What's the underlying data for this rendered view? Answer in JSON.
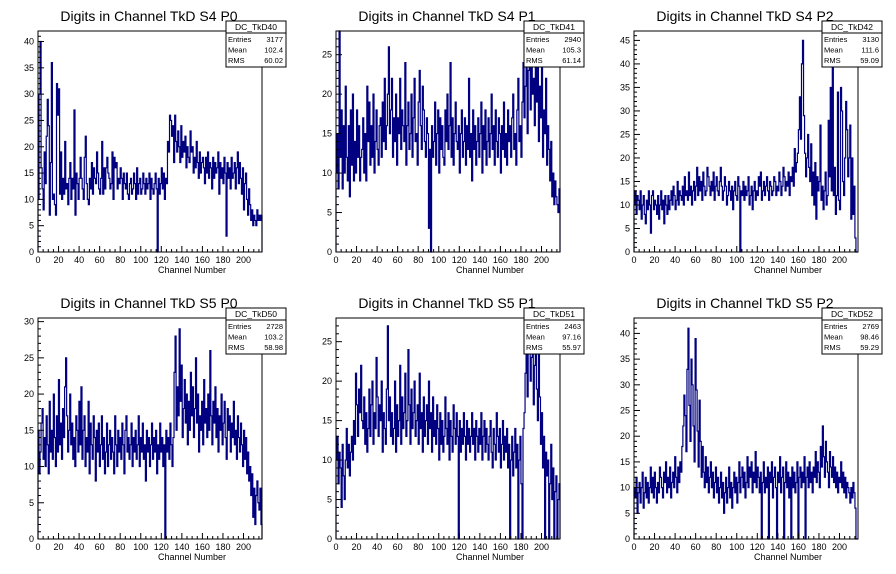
{
  "xlabel": "Channel Number",
  "chart_data": [
    {
      "type": "histogram",
      "title": "Digits in Channel TkD S4 P0",
      "xlabel": "Channel Number",
      "xlim": [
        0,
        218
      ],
      "ylim": [
        0,
        42
      ],
      "xticks": [
        0,
        20,
        40,
        60,
        80,
        100,
        120,
        140,
        160,
        180,
        200
      ],
      "yticks": [
        0,
        5,
        10,
        15,
        20,
        25,
        30,
        35,
        40
      ],
      "stats": {
        "name": "DC_TkD40",
        "entries": "3177",
        "mean": "102.4",
        "rms": "60.02"
      },
      "color": "#000080",
      "values": [
        10,
        30,
        40,
        16,
        12,
        8,
        19,
        13,
        22,
        29,
        24,
        7,
        17,
        36,
        10,
        11,
        9,
        7,
        32,
        26,
        31,
        11,
        19,
        10,
        14,
        11,
        21,
        12,
        13,
        9,
        14,
        17,
        10,
        14,
        12,
        27,
        7,
        15,
        13,
        10,
        14,
        18,
        14,
        12,
        10,
        18,
        22,
        13,
        10,
        9,
        14,
        12,
        17,
        11,
        16,
        14,
        13,
        19,
        15,
        12,
        11,
        14,
        21,
        11,
        16,
        12,
        16,
        18,
        15,
        14,
        12,
        13,
        19,
        10,
        18,
        16,
        17,
        12,
        14,
        13,
        16,
        14,
        10,
        15,
        13,
        12,
        15,
        11,
        10,
        13,
        14,
        11,
        12,
        15,
        13,
        10,
        16,
        11,
        13,
        14,
        11,
        12,
        15,
        13,
        11,
        14,
        12,
        13,
        15,
        10,
        14,
        12,
        11,
        13,
        15,
        12,
        0,
        14,
        11,
        13,
        16,
        12,
        15,
        10,
        14,
        13,
        21,
        19,
        26,
        25,
        22,
        24,
        17,
        26,
        21,
        19,
        23,
        20,
        17,
        24,
        18,
        21,
        19,
        22,
        16,
        20,
        18,
        17,
        23,
        19,
        20,
        15,
        18,
        16,
        21,
        17,
        14,
        19,
        15,
        17,
        18,
        16,
        13,
        18,
        15,
        19,
        14,
        17,
        16,
        12,
        18,
        14,
        17,
        15,
        16,
        19,
        11,
        17,
        14,
        16,
        13,
        18,
        15,
        3,
        17,
        14,
        16,
        12,
        18,
        14,
        15,
        17,
        12,
        16,
        19,
        13,
        17,
        14,
        11,
        16,
        8,
        13,
        15,
        10,
        7,
        12,
        9,
        6,
        8,
        5,
        7,
        6,
        5,
        8,
        6,
        7,
        6,
        7
      ]
    },
    {
      "type": "histogram",
      "title": "Digits in Channel TkD S4 P1",
      "xlabel": "Channel Number",
      "xlim": [
        0,
        218
      ],
      "ylim": [
        0,
        28
      ],
      "xticks": [
        0,
        20,
        40,
        60,
        80,
        100,
        120,
        140,
        160,
        180,
        200
      ],
      "yticks": [
        0,
        5,
        10,
        15,
        20,
        25
      ],
      "stats": {
        "name": "DC_TkD41",
        "entries": "2940",
        "mean": "105.3",
        "rms": "61.14"
      },
      "color": "#000080",
      "values": [
        10,
        15,
        8,
        28,
        12,
        18,
        8,
        16,
        10,
        21,
        12,
        9,
        16,
        7,
        18,
        11,
        20,
        9,
        14,
        10,
        18,
        12,
        16,
        9,
        12,
        13,
        17,
        10,
        15,
        9,
        21,
        14,
        19,
        11,
        16,
        12,
        20,
        10,
        14,
        18,
        13,
        11,
        16,
        17,
        12,
        19,
        14,
        22,
        13,
        16,
        20,
        26,
        15,
        18,
        22,
        12,
        17,
        14,
        20,
        11,
        17,
        15,
        22,
        13,
        18,
        16,
        14,
        24,
        11,
        16,
        19,
        13,
        15,
        20,
        12,
        17,
        22,
        14,
        15,
        11,
        19,
        23,
        16,
        13,
        21,
        18,
        14,
        12,
        17,
        15,
        3,
        13,
        0,
        16,
        12,
        14,
        19,
        11,
        15,
        18,
        10,
        17,
        13,
        16,
        12,
        11,
        18,
        14,
        20,
        13,
        16,
        24,
        12,
        17,
        11,
        15,
        19,
        14,
        13,
        16,
        10,
        15,
        18,
        12,
        14,
        17,
        11,
        16,
        13,
        22,
        12,
        15,
        9,
        18,
        13,
        16,
        11,
        14,
        17,
        12,
        15,
        19,
        10,
        16,
        13,
        18,
        11,
        14,
        17,
        12,
        15,
        20,
        13,
        16,
        11,
        18,
        14,
        12,
        17,
        15,
        10,
        16,
        13,
        19,
        12,
        15,
        11,
        18,
        14,
        16,
        12,
        17,
        20,
        13,
        15,
        11,
        18,
        22,
        14,
        16,
        12,
        19,
        24,
        17,
        21,
        26,
        15,
        23,
        28,
        18,
        25,
        20,
        22,
        16,
        27,
        19,
        24,
        14,
        21,
        17,
        25,
        12,
        18,
        15,
        22,
        11,
        16,
        13,
        9,
        14,
        7,
        10,
        6,
        9,
        7,
        6,
        5,
        8
      ]
    },
    {
      "type": "histogram",
      "title": "Digits in Channel TkD S4 P2",
      "xlabel": "Channel Number",
      "xlim": [
        0,
        218
      ],
      "ylim": [
        0,
        47
      ],
      "xticks": [
        0,
        20,
        40,
        60,
        80,
        100,
        120,
        140,
        160,
        180,
        200
      ],
      "yticks": [
        0,
        5,
        10,
        15,
        20,
        25,
        30,
        35,
        40,
        45
      ],
      "stats": {
        "name": "DC_TkD42",
        "entries": "3130",
        "mean": "111.6",
        "rms": "59.09"
      },
      "color": "#000080",
      "values": [
        10,
        13,
        8,
        12,
        11,
        9,
        13,
        7,
        10,
        12,
        8,
        6,
        11,
        9,
        13,
        10,
        4,
        12,
        13,
        9,
        11,
        10,
        8,
        12,
        7,
        10,
        13,
        9,
        11,
        6,
        12,
        10,
        8,
        12,
        9,
        11,
        13,
        10,
        14,
        12,
        9,
        11,
        15,
        10,
        13,
        12,
        11,
        14,
        10,
        16,
        12,
        13,
        11,
        17,
        12,
        14,
        10,
        13,
        15,
        11,
        14,
        18,
        12,
        16,
        13,
        15,
        11,
        17,
        14,
        12,
        13,
        18,
        16,
        14,
        12,
        15,
        13,
        17,
        11,
        14,
        16,
        13,
        12,
        15,
        18,
        14,
        11,
        13,
        16,
        14,
        10,
        12,
        15,
        13,
        11,
        14,
        9,
        13,
        15,
        12,
        11,
        16,
        14,
        0,
        13,
        12,
        15,
        11,
        14,
        12,
        13,
        16,
        10,
        12,
        14,
        9,
        13,
        15,
        11,
        13,
        12,
        16,
        14,
        17,
        11,
        13,
        15,
        12,
        14,
        16,
        13,
        11,
        15,
        14,
        12,
        13,
        16,
        15,
        12,
        14,
        13,
        17,
        15,
        12,
        14,
        18,
        16,
        13,
        15,
        14,
        17,
        12,
        16,
        15,
        18,
        14,
        22,
        17,
        19,
        21,
        26,
        33,
        24,
        40,
        45,
        29,
        21,
        16,
        20,
        25,
        18,
        15,
        23,
        12,
        17,
        10,
        19,
        7,
        16,
        13,
        15,
        27,
        11,
        14,
        9,
        13,
        17,
        10,
        12,
        28,
        16,
        35,
        13,
        40,
        12,
        18,
        8,
        12,
        34,
        11,
        9,
        35,
        30,
        15,
        12,
        20,
        32,
        26,
        16,
        20,
        27,
        7,
        20,
        8,
        14,
        3,
        0,
        0
      ]
    },
    {
      "type": "histogram",
      "title": "Digits in Channel TkD S5 P0",
      "xlabel": "Channel Number",
      "xlim": [
        0,
        218
      ],
      "ylim": [
        0,
        30.5
      ],
      "xticks": [
        0,
        20,
        40,
        60,
        80,
        100,
        120,
        140,
        160,
        180,
        200
      ],
      "yticks": [
        0,
        5,
        10,
        15,
        20,
        25,
        30
      ],
      "stats": {
        "name": "DC_TkD50",
        "entries": "2728",
        "mean": "103.2",
        "rms": "58.98"
      },
      "color": "#000080",
      "values": [
        15,
        9,
        12,
        16,
        18,
        11,
        14,
        10,
        17,
        13,
        9,
        19,
        12,
        15,
        11,
        20,
        14,
        10,
        17,
        12,
        22,
        13,
        16,
        11,
        18,
        14,
        21,
        25,
        17,
        12,
        15,
        20,
        13,
        16,
        11,
        14,
        10,
        17,
        15,
        12,
        19,
        13,
        21,
        11,
        15,
        17,
        10,
        14,
        12,
        19,
        9,
        16,
        13,
        11,
        17,
        14,
        8,
        15,
        12,
        16,
        10,
        13,
        17,
        11,
        14,
        9,
        12,
        16,
        10,
        13,
        15,
        11,
        14,
        12,
        9,
        17,
        13,
        10,
        15,
        12,
        14,
        11,
        16,
        13,
        9,
        15,
        17,
        12,
        14,
        11,
        13,
        16,
        10,
        14,
        12,
        15,
        11,
        13,
        17,
        10,
        14,
        12,
        16,
        11,
        13,
        8,
        15,
        12,
        14,
        10,
        13,
        16,
        11,
        14,
        12,
        15,
        9,
        13,
        11,
        16,
        12,
        14,
        10,
        13,
        0,
        15,
        12,
        14,
        11,
        16,
        13,
        10,
        14,
        23,
        28,
        15,
        21,
        17,
        29,
        19,
        24,
        14,
        18,
        22,
        16,
        20,
        13,
        19,
        15,
        23,
        17,
        21,
        14,
        18,
        25,
        16,
        20,
        12,
        17,
        15,
        19,
        13,
        22,
        16,
        18,
        14,
        20,
        15,
        26,
        17,
        13,
        19,
        16,
        21,
        14,
        18,
        12,
        17,
        15,
        20,
        13,
        16,
        19,
        14,
        11,
        18,
        15,
        17,
        12,
        16,
        14,
        19,
        13,
        15,
        11,
        17,
        14,
        12,
        16,
        13,
        10,
        15,
        11,
        14,
        9,
        12,
        8,
        10,
        6,
        9,
        3,
        7,
        2,
        6,
        8,
        5,
        4,
        7,
        2
      ]
    },
    {
      "type": "histogram",
      "title": "Digits in Channel TkD S5 P1",
      "xlabel": "Channel Number",
      "xlim": [
        0,
        218
      ],
      "ylim": [
        0,
        28
      ],
      "xticks": [
        0,
        20,
        40,
        60,
        80,
        100,
        120,
        140,
        160,
        180,
        200
      ],
      "yticks": [
        0,
        5,
        10,
        15,
        20,
        25
      ],
      "stats": {
        "name": "DC_TkD51",
        "entries": "2463",
        "mean": "97.16",
        "rms": "55.97"
      },
      "color": "#000080",
      "values": [
        10,
        13,
        7,
        11,
        9,
        4,
        12,
        8,
        5,
        10,
        14,
        9,
        12,
        8,
        11,
        13,
        10,
        15,
        12,
        21,
        17,
        13,
        19,
        16,
        22,
        15,
        14,
        18,
        12,
        16,
        11,
        14,
        19,
        13,
        17,
        20,
        12,
        16,
        14,
        23,
        18,
        13,
        17,
        15,
        20,
        11,
        16,
        14,
        12,
        19,
        27,
        15,
        18,
        13,
        16,
        12,
        14,
        20,
        11,
        17,
        13,
        15,
        22,
        12,
        18,
        14,
        16,
        21,
        13,
        15,
        24,
        17,
        12,
        19,
        14,
        16,
        20,
        13,
        15,
        17,
        12,
        21,
        14,
        16,
        11,
        18,
        13,
        15,
        17,
        12,
        20,
        14,
        16,
        11,
        18,
        13,
        15,
        12,
        17,
        14,
        10,
        16,
        12,
        15,
        11,
        13,
        18,
        14,
        12,
        16,
        10,
        15,
        13,
        11,
        17,
        14,
        12,
        16,
        13,
        0,
        15,
        11,
        14,
        12,
        16,
        13,
        10,
        15,
        12,
        14,
        11,
        13,
        16,
        12,
        14,
        10,
        15,
        13,
        11,
        14,
        12,
        16,
        10,
        13,
        15,
        11,
        14,
        12,
        10,
        13,
        15,
        11,
        9,
        14,
        12,
        10,
        16,
        13,
        11,
        14,
        9,
        12,
        15,
        10,
        13,
        11,
        14,
        9,
        12,
        0,
        10,
        13,
        8,
        11,
        14,
        9,
        12,
        0,
        10,
        13,
        7,
        0,
        14,
        16,
        21,
        24,
        18,
        25,
        27,
        20,
        23,
        28,
        17,
        22,
        26,
        19,
        15,
        24,
        18,
        12,
        16,
        9,
        13,
        0,
        11,
        8,
        10,
        0,
        7,
        12,
        5,
        9,
        0,
        6,
        8,
        0,
        5,
        7
      ]
    },
    {
      "type": "histogram",
      "title": "Digits in Channel TkD S5 P2",
      "xlabel": "Channel Number",
      "xlim": [
        0,
        218
      ],
      "ylim": [
        0,
        43
      ],
      "xticks": [
        0,
        20,
        40,
        60,
        80,
        100,
        120,
        140,
        160,
        180,
        200
      ],
      "yticks": [
        0,
        5,
        10,
        15,
        20,
        25,
        30,
        35,
        40
      ],
      "stats": {
        "name": "DC_TkD52",
        "entries": "2769",
        "mean": "98.46",
        "rms": "59.29"
      },
      "color": "#000080",
      "values": [
        10,
        8,
        12,
        5,
        9,
        11,
        7,
        10,
        13,
        6,
        9,
        12,
        8,
        11,
        7,
        10,
        14,
        9,
        12,
        8,
        13,
        10,
        7,
        11,
        9,
        14,
        12,
        10,
        8,
        13,
        11,
        15,
        9,
        12,
        10,
        14,
        8,
        11,
        13,
        10,
        16,
        12,
        9,
        14,
        11,
        15,
        13,
        18,
        22,
        28,
        24,
        17,
        33,
        41,
        26,
        19,
        35,
        30,
        22,
        15,
        39,
        29,
        21,
        14,
        27,
        19,
        12,
        18,
        13,
        10,
        16,
        11,
        14,
        9,
        12,
        15,
        10,
        13,
        8,
        11,
        14,
        9,
        12,
        7,
        10,
        13,
        8,
        11,
        5,
        9,
        12,
        7,
        10,
        14,
        8,
        11,
        6,
        10,
        13,
        9,
        12,
        7,
        11,
        15,
        9,
        12,
        14,
        10,
        13,
        8,
        11,
        16,
        10,
        14,
        12,
        15,
        9,
        13,
        11,
        17,
        10,
        14,
        12,
        9,
        13,
        0,
        11,
        15,
        9,
        12,
        10,
        14,
        0,
        13,
        11,
        15,
        8,
        12,
        14,
        10,
        0,
        13,
        11,
        16,
        9,
        12,
        14,
        0,
        11,
        15,
        10,
        13,
        8,
        12,
        0,
        14,
        10,
        13,
        9,
        11,
        15,
        0,
        12,
        14,
        10,
        13,
        11,
        16,
        0,
        12,
        14,
        10,
        15,
        11,
        13,
        9,
        14,
        12,
        17,
        11,
        15,
        13,
        10,
        18,
        14,
        22,
        16,
        12,
        19,
        15,
        13,
        10,
        17,
        14,
        12,
        16,
        11,
        14,
        10,
        13,
        9,
        12,
        11,
        15,
        10,
        13,
        9,
        12,
        8,
        11,
        10,
        9,
        7,
        10,
        8,
        11,
        9,
        6,
        0,
        0
      ]
    }
  ]
}
